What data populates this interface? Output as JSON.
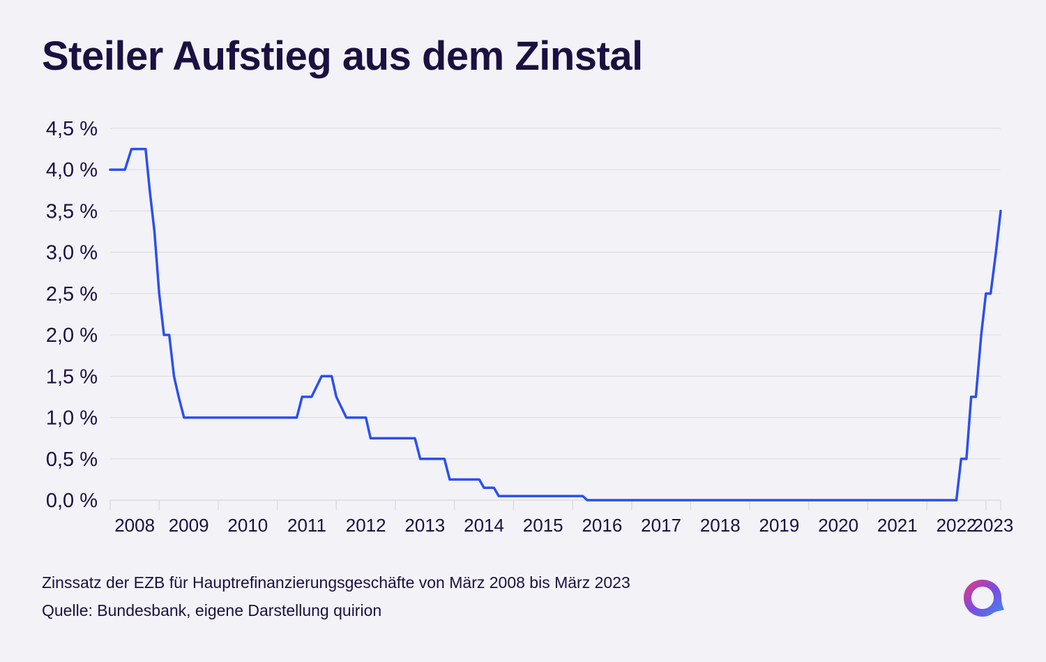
{
  "title": "Steiler Aufstieg aus dem Zinstal",
  "footer": {
    "caption": "Zinssatz der EZB für Hauptrefinanzierungsgeschäfte von März 2008 bis März 2023",
    "source": "Quelle: Bundesbank, eigene Darstellung quirion"
  },
  "colors": {
    "line": "#2b4ff0",
    "text": "#1b1140",
    "grid": "#dcdbe2",
    "background": "#f3f2f7"
  },
  "logo": {
    "icon": "quirion-logo-icon",
    "gradient": [
      "#e8387a",
      "#7b4ce0",
      "#3a8df0"
    ]
  },
  "chart_data": {
    "type": "line",
    "x_unit": "year (decimal)",
    "xlim": [
      2008.17,
      2023.25
    ],
    "ylim": [
      0,
      4.5
    ],
    "ytick_values": [
      0,
      0.5,
      1,
      1.5,
      2,
      2.5,
      3,
      3.5,
      4,
      4.5
    ],
    "ytick_labels": [
      "0,0 %",
      "0,5 %",
      "1,0 %",
      "1,5 %",
      "2,0 %",
      "2,5 %",
      "3,0 %",
      "3,5 %",
      "4,0 %",
      "4,5 %"
    ],
    "xtick_labels": [
      "2008",
      "2009",
      "2010",
      "2011",
      "2012",
      "2013",
      "2014",
      "2015",
      "2016",
      "2017",
      "2018",
      "2019",
      "2020",
      "2021",
      "2022",
      "2023"
    ],
    "grid": true,
    "series": [
      {
        "points": [
          [
            2008.17,
            4.0
          ],
          [
            2008.42,
            4.0
          ],
          [
            2008.53,
            4.25
          ],
          [
            2008.77,
            4.25
          ],
          [
            2008.84,
            3.75
          ],
          [
            2008.92,
            3.25
          ],
          [
            2009.0,
            2.5
          ],
          [
            2009.08,
            2.0
          ],
          [
            2009.17,
            2.0
          ],
          [
            2009.25,
            1.5
          ],
          [
            2009.33,
            1.25
          ],
          [
            2009.42,
            1.0
          ],
          [
            2011.33,
            1.0
          ],
          [
            2011.42,
            1.25
          ],
          [
            2011.58,
            1.25
          ],
          [
            2011.75,
            1.5
          ],
          [
            2011.92,
            1.5
          ],
          [
            2012.0,
            1.25
          ],
          [
            2012.17,
            1.0
          ],
          [
            2012.5,
            1.0
          ],
          [
            2012.58,
            0.75
          ],
          [
            2013.33,
            0.75
          ],
          [
            2013.42,
            0.5
          ],
          [
            2013.83,
            0.5
          ],
          [
            2013.92,
            0.25
          ],
          [
            2014.42,
            0.25
          ],
          [
            2014.5,
            0.15
          ],
          [
            2014.67,
            0.15
          ],
          [
            2014.75,
            0.05
          ],
          [
            2016.17,
            0.05
          ],
          [
            2016.25,
            0.0
          ],
          [
            2022.5,
            0.0
          ],
          [
            2022.58,
            0.5
          ],
          [
            2022.67,
            0.5
          ],
          [
            2022.75,
            1.25
          ],
          [
            2022.83,
            1.25
          ],
          [
            2022.92,
            2.0
          ],
          [
            2023.0,
            2.5
          ],
          [
            2023.08,
            2.5
          ],
          [
            2023.17,
            3.0
          ],
          [
            2023.25,
            3.5
          ]
        ]
      }
    ]
  }
}
